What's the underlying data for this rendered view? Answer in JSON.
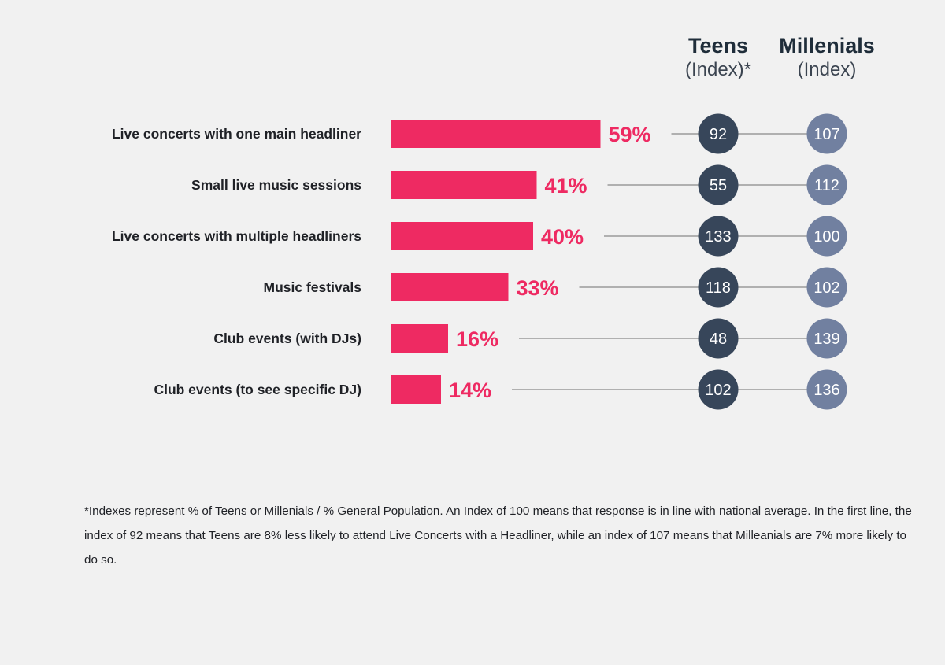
{
  "columns": {
    "teens": {
      "title": "Teens",
      "sub": "(Index)*"
    },
    "millenials": {
      "title": "Millenials",
      "sub": "(Index)"
    }
  },
  "chart_data": {
    "type": "bar",
    "categories": [
      "Live concerts with one main headliner",
      "Small live music sessions",
      "Live concerts with multiple headliners",
      "Music festivals",
      "Club events (with DJs)",
      "Club events (to see specific DJ)"
    ],
    "values": [
      59,
      41,
      40,
      33,
      16,
      14
    ],
    "value_labels": [
      "59%",
      "41%",
      "40%",
      "33%",
      "16%",
      "14%"
    ],
    "teens_index": [
      92,
      55,
      133,
      118,
      48,
      102
    ],
    "millenials_index": [
      107,
      112,
      100,
      102,
      139,
      136
    ],
    "colors": {
      "bar": "#ee2a62",
      "teens_circle": "#37465a",
      "millenials_circle": "#7180a0",
      "category_text": "#1f2126",
      "connector": "#8a8a8a"
    }
  },
  "footnote": "*Indexes represent % of Teens or Millenials / % General Population. An Index of 100 means that response is in line with national average. In the first line, the index of 92 means that Teens are 8% less likely to attend Live Concerts with a Headliner, while an index of 107 means that Milleanials are 7% more likely to do so."
}
